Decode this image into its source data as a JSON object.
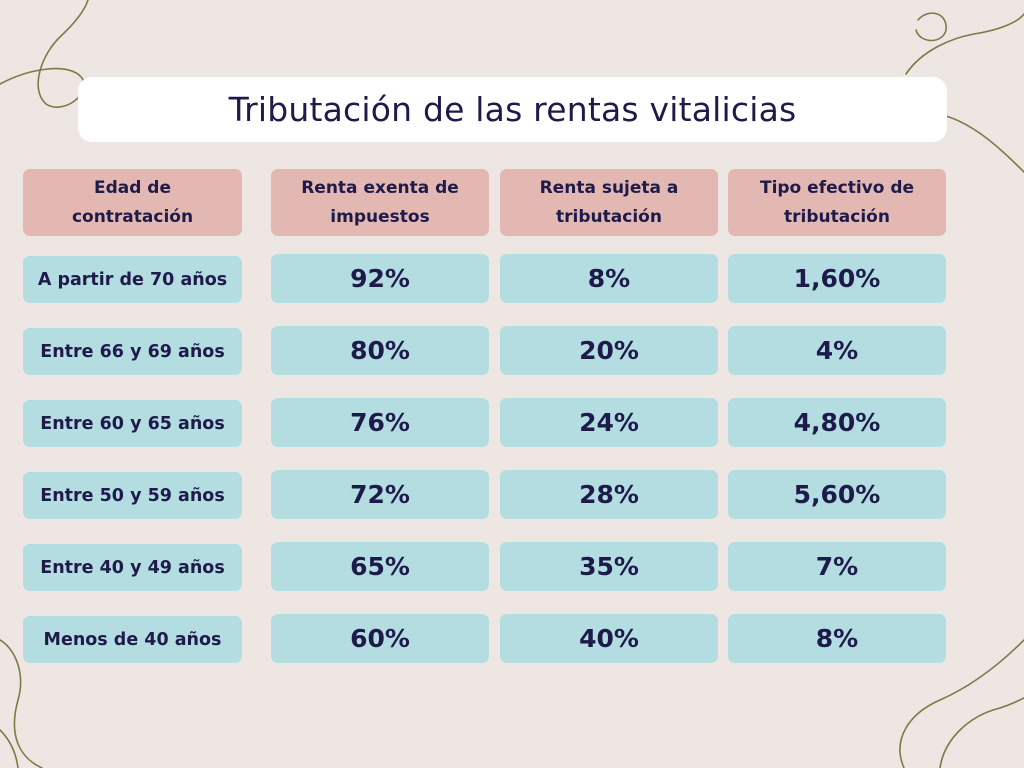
{
  "title": "Tributación de las rentas vitalicias",
  "headers": [
    "Edad de contratación",
    "Renta exenta de impuestos",
    "Renta sujeta a tributación",
    "Tipo efectivo de tributación"
  ],
  "rows": [
    {
      "label": "A partir de 70 años",
      "exenta": "92%",
      "sujeta": "8%",
      "tipo": "1,60%"
    },
    {
      "label": "Entre 66 y 69 años",
      "exenta": "80%",
      "sujeta": "20%",
      "tipo": "4%"
    },
    {
      "label": "Entre 60 y 65 años",
      "exenta": "76%",
      "sujeta": "24%",
      "tipo": "4,80%"
    },
    {
      "label": "Entre 50 y 59 años",
      "exenta": "72%",
      "sujeta": "28%",
      "tipo": "5,60%"
    },
    {
      "label": "Entre 40 y 49 años",
      "exenta": "65%",
      "sujeta": "35%",
      "tipo": "7%"
    },
    {
      "label": "Menos de 40 años",
      "exenta": "60%",
      "sujeta": "40%",
      "tipo": "8%"
    }
  ],
  "colors": {
    "background": "#ede6e3",
    "header_cell": "#e4b8b2",
    "data_cell": "#b4dde2",
    "text": "#1e1b4a",
    "decorative_line": "#7d7a45"
  }
}
